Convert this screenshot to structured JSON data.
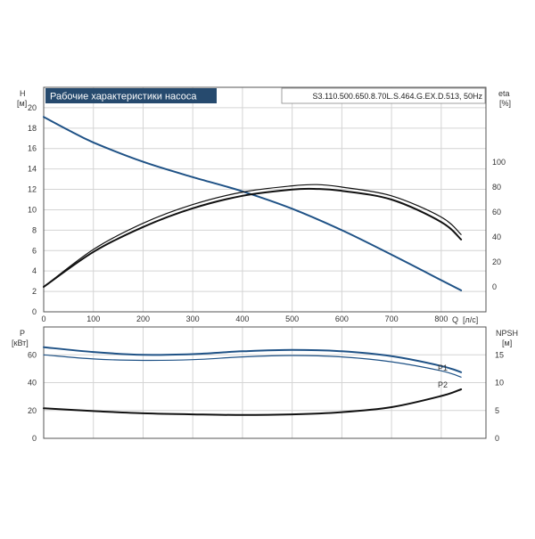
{
  "chart_title": "Рабочие характеристики насоса",
  "model_label": "S3.110.500.650.8.70L.S.464.G.EX.D.513, 50Hz",
  "colors": {
    "head": "#1f5286",
    "eta": "#111111",
    "power": "#1f5286",
    "npsh": "#111111"
  },
  "chart_data": [
    {
      "type": "line",
      "title": "Рабочие характеристики насоса",
      "xlabel": "Q [л/с]",
      "ylabel": "H [м]",
      "y2label": "eta [%]",
      "xlim": [
        0,
        890
      ],
      "ylim": [
        0,
        22
      ],
      "y2lim": [
        -20,
        160
      ],
      "xticks": [
        0,
        100,
        200,
        300,
        400,
        500,
        600,
        700,
        800
      ],
      "yticks": [
        0,
        2,
        4,
        6,
        8,
        10,
        12,
        14,
        16,
        18,
        20
      ],
      "y2ticks": [
        0,
        20,
        40,
        60,
        80,
        100
      ],
      "x_axis_label_q": "Q",
      "x_axis_label_unit": "[л/с]",
      "y_axis_label_h": "H",
      "y_axis_label_h_unit": "[м]",
      "y2_axis_label_eta": "eta",
      "y2_axis_label_eta_unit": "[%]",
      "grid": true,
      "series": [
        {
          "axis": "left",
          "color": "#1f5286",
          "width": 2,
          "x": [
            0,
            50,
            100,
            200,
            300,
            400,
            500,
            600,
            700,
            800,
            840
          ],
          "y": [
            19.1,
            17.8,
            16.6,
            14.7,
            13.2,
            11.8,
            10.1,
            8.0,
            5.6,
            3.1,
            2.1
          ]
        },
        {
          "axis": "right",
          "color": "#111111",
          "width": 2,
          "x": [
            0,
            100,
            200,
            300,
            400,
            500,
            550,
            600,
            700,
            800,
            840
          ],
          "y": [
            0,
            28,
            48,
            63,
            73,
            78,
            78.5,
            77,
            70,
            52,
            38
          ]
        },
        {
          "axis": "right",
          "color": "#111111",
          "width": 1.2,
          "x": [
            0,
            100,
            200,
            300,
            400,
            500,
            550,
            600,
            700,
            800,
            840
          ],
          "y": [
            0,
            30,
            51,
            66,
            76,
            81,
            82,
            80,
            73,
            56,
            42
          ]
        }
      ]
    },
    {
      "type": "line",
      "ylabel": "P [кВт]",
      "y2label": "NPSH [м]",
      "xlim": [
        0,
        890
      ],
      "ylim": [
        0,
        80
      ],
      "y2lim": [
        0,
        20
      ],
      "yticks": [
        0,
        20,
        40,
        60
      ],
      "y2ticks": [
        0,
        5,
        10,
        15
      ],
      "y_axis_label_p": "P",
      "y_axis_label_p_unit": "[кВт]",
      "y2_axis_label_npsh": "NPSH",
      "y2_axis_label_npsh_unit": "[м]",
      "grid": true,
      "series": [
        {
          "name": "P1",
          "axis": "left",
          "color": "#1f5286",
          "width": 2,
          "x": [
            0,
            100,
            200,
            300,
            400,
            500,
            600,
            700,
            800,
            840
          ],
          "y": [
            65.5,
            62,
            60,
            60.5,
            62.5,
            63.5,
            62.5,
            59,
            52,
            47.5
          ]
        },
        {
          "name": "P2",
          "axis": "left",
          "color": "#1f5286",
          "width": 1.2,
          "x": [
            0,
            100,
            200,
            300,
            400,
            500,
            600,
            700,
            800,
            840
          ],
          "y": [
            60,
            57,
            56,
            56.5,
            58.5,
            59.5,
            58.5,
            55,
            48.5,
            44
          ]
        },
        {
          "axis": "right",
          "color": "#111111",
          "width": 2,
          "x": [
            0,
            100,
            200,
            300,
            400,
            500,
            600,
            700,
            800,
            840
          ],
          "y": [
            5.4,
            4.9,
            4.5,
            4.3,
            4.2,
            4.3,
            4.7,
            5.6,
            7.6,
            8.8
          ]
        }
      ]
    }
  ]
}
